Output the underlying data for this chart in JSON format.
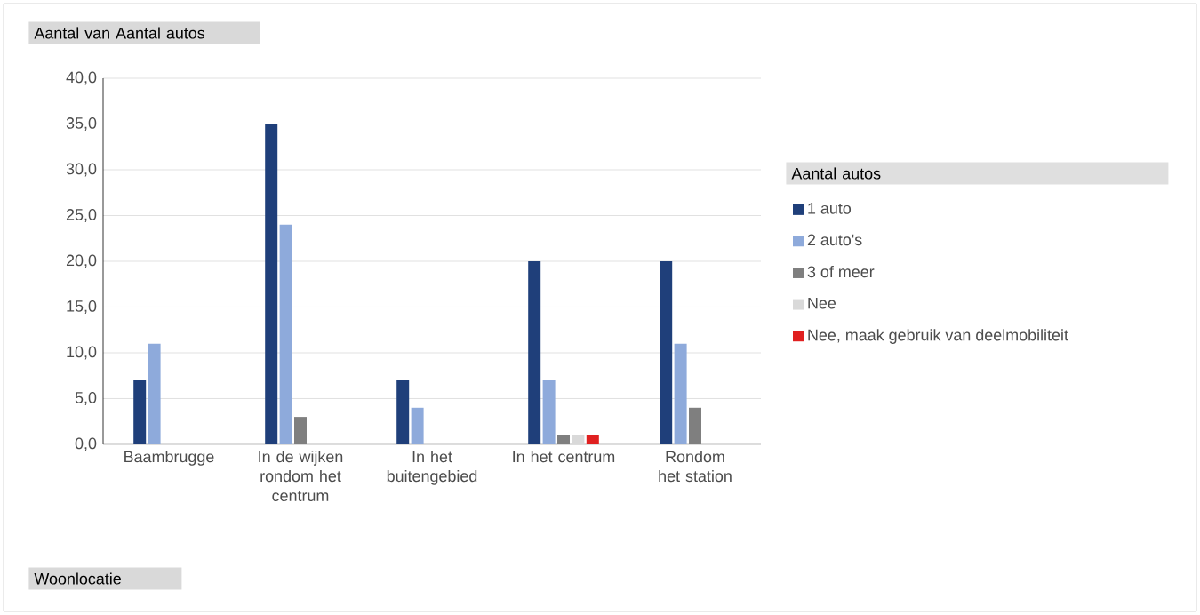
{
  "chart_data": {
    "type": "bar",
    "title": "Aantal van  Aantal autos",
    "xlabel": "Woonlocatie",
    "legend_title": "Aantal autos",
    "legend": "right",
    "grid": "y",
    "categories": [
      "Baambrugge",
      "In de wijken rondom het centrum",
      "In het buitengebied",
      "In het centrum",
      "Rondom het station"
    ],
    "series": [
      {
        "name": "1 auto",
        "color": "#1f3f7a",
        "values": [
          7,
          35,
          7,
          20,
          20
        ]
      },
      {
        "name": "2 auto's",
        "color": "#8eaadb",
        "values": [
          11,
          24,
          4,
          7,
          11
        ]
      },
      {
        "name": "3 of meer",
        "color": "#7f7f7f",
        "values": [
          null,
          3,
          null,
          1,
          4
        ]
      },
      {
        "name": "Nee",
        "color": "#d9d9d9",
        "values": [
          null,
          null,
          null,
          1,
          null
        ]
      },
      {
        "name": "Nee, maak gebruik van deelmobiliteit",
        "color": "#e02020",
        "values": [
          null,
          null,
          null,
          1,
          null
        ]
      }
    ],
    "ylim": [
      0,
      40
    ],
    "yticks": [
      {
        "value": 0,
        "label": "0,0"
      },
      {
        "value": 5,
        "label": "5,0"
      },
      {
        "value": 10,
        "label": "10,0"
      },
      {
        "value": 15,
        "label": "15,0"
      },
      {
        "value": 20,
        "label": "20,0"
      },
      {
        "value": 25,
        "label": "25,0"
      },
      {
        "value": 30,
        "label": "30,0"
      },
      {
        "value": 35,
        "label": "35,0"
      },
      {
        "value": 40,
        "label": "40,0"
      }
    ]
  }
}
